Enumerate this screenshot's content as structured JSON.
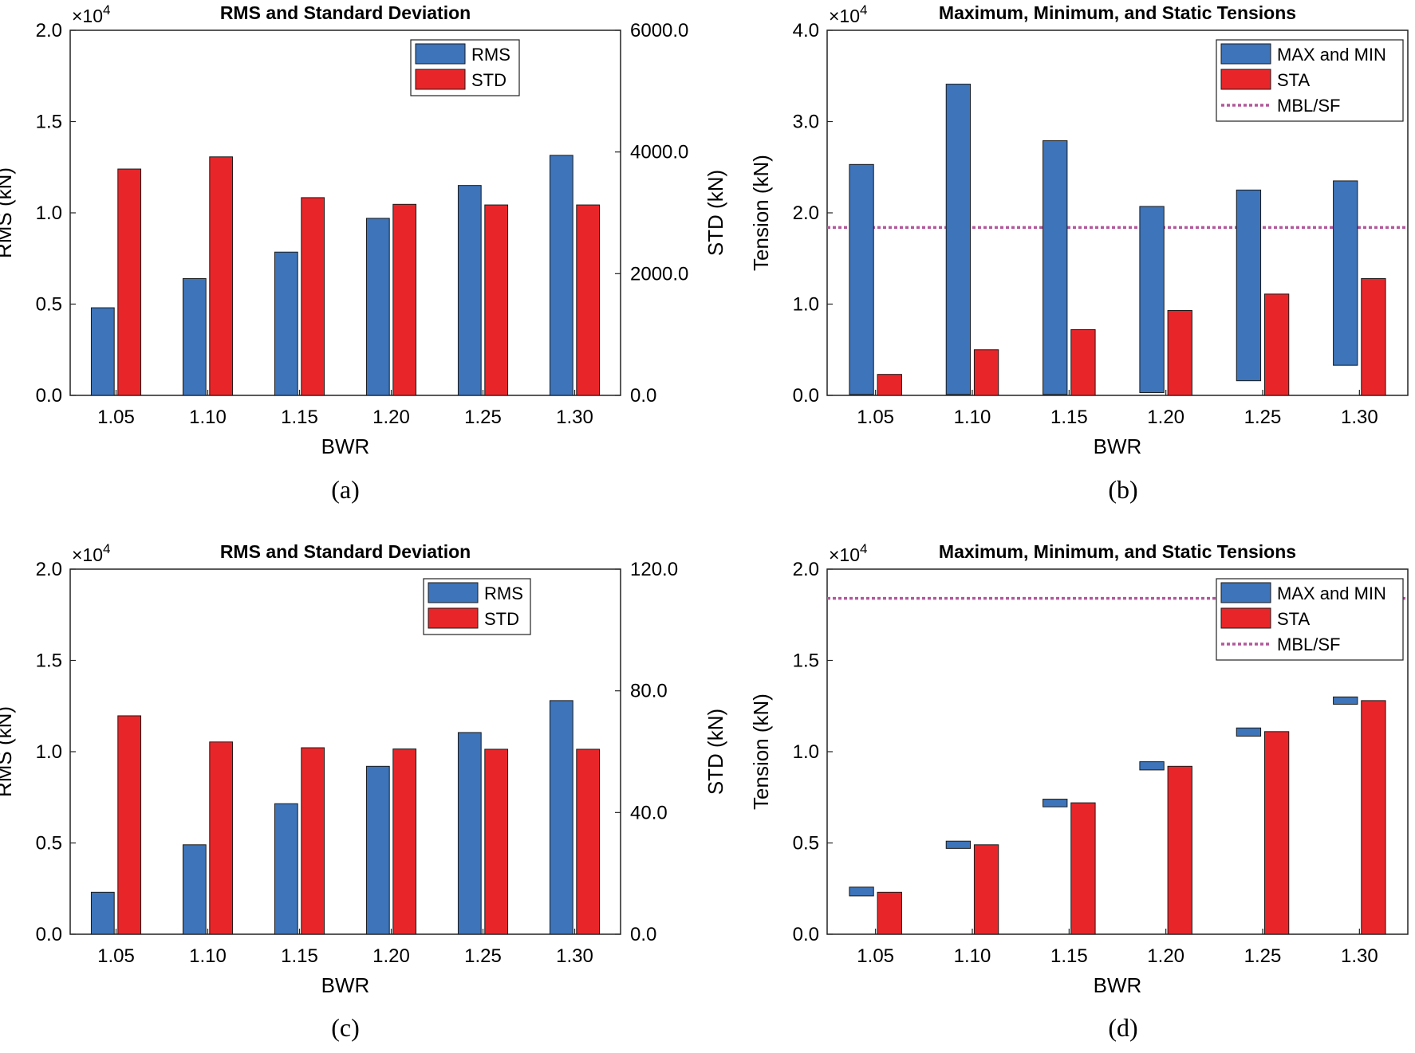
{
  "colors": {
    "rms": "#3d74ba",
    "std": "#e8262a",
    "mbl": "#b2589c"
  },
  "chart_data": [
    {
      "type": "bar",
      "panel": "(a)",
      "title": "RMS and Standard Deviation",
      "xlabel": "BWR",
      "ylabel": "RMS (kN)",
      "y2label": "STD (kN)",
      "exponent_base": "×10",
      "exponent_power": "4",
      "categories": [
        "1.05",
        "1.10",
        "1.15",
        "1.20",
        "1.25",
        "1.30"
      ],
      "ylim": [
        0,
        20000
      ],
      "y2lim": [
        0,
        6000
      ],
      "yticks": [
        "0.0",
        "0.5",
        "1.0",
        "1.5",
        "2.0"
      ],
      "y2ticks": [
        "0.0",
        "2000.0",
        "4000.0",
        "6000.0"
      ],
      "series": [
        {
          "name": "RMS",
          "axis": "left",
          "values": [
            4800,
            6400,
            7850,
            9700,
            11500,
            13150
          ]
        },
        {
          "name": "STD",
          "axis": "right",
          "values": [
            3720,
            3920,
            3250,
            3140,
            3130,
            3130
          ]
        }
      ],
      "legend": [
        "RMS",
        "STD"
      ],
      "legend_position": "top-right"
    },
    {
      "type": "bar",
      "panel": "(b)",
      "title": "Maximum, Minimum, and Static Tensions",
      "xlabel": "BWR",
      "ylabel": "Tension (kN)",
      "exponent_base": "×10",
      "exponent_power": "4",
      "categories": [
        "1.05",
        "1.10",
        "1.15",
        "1.20",
        "1.25",
        "1.30"
      ],
      "ylim": [
        0,
        40000
      ],
      "yticks": [
        "0.0",
        "1.0",
        "2.0",
        "3.0",
        "4.0"
      ],
      "series": [
        {
          "name": "MAX and MIN",
          "kind": "floating",
          "max": [
            25300,
            34100,
            27900,
            20700,
            22500,
            23500
          ],
          "min": [
            100,
            100,
            100,
            300,
            1600,
            3300
          ]
        },
        {
          "name": "STA",
          "values": [
            2300,
            5000,
            7200,
            9300,
            11100,
            12800
          ]
        }
      ],
      "reference_line": {
        "name": "MBL/SF",
        "value": 18400
      },
      "legend": [
        "MAX and MIN",
        "STA",
        "MBL/SF"
      ],
      "legend_position": "top-right"
    },
    {
      "type": "bar",
      "panel": "(c)",
      "title": "RMS and Standard Deviation",
      "xlabel": "BWR",
      "ylabel": "RMS (kN)",
      "y2label": "STD (kN)",
      "exponent_base": "×10",
      "exponent_power": "4",
      "categories": [
        "1.05",
        "1.10",
        "1.15",
        "1.20",
        "1.25",
        "1.30"
      ],
      "ylim": [
        0,
        20000
      ],
      "y2lim": [
        0,
        120
      ],
      "yticks": [
        "0.0",
        "0.5",
        "1.0",
        "1.5",
        "2.0"
      ],
      "y2ticks": [
        "0.0",
        "40.0",
        "80.0",
        "120.0"
      ],
      "series": [
        {
          "name": "RMS",
          "axis": "left",
          "values": [
            2300,
            4900,
            7150,
            9200,
            11050,
            12800
          ]
        },
        {
          "name": "STD",
          "axis": "right",
          "values": [
            71.8,
            63.2,
            61.3,
            60.9,
            60.8,
            60.8
          ]
        }
      ],
      "legend": [
        "RMS",
        "STD"
      ],
      "legend_position": "top-right"
    },
    {
      "type": "bar",
      "panel": "(d)",
      "title": "Maximum, Minimum, and Static Tensions",
      "xlabel": "BWR",
      "ylabel": "Tension (kN)",
      "exponent_base": "×10",
      "exponent_power": "4",
      "categories": [
        "1.05",
        "1.10",
        "1.15",
        "1.20",
        "1.25",
        "1.30"
      ],
      "ylim": [
        0,
        20000
      ],
      "yticks": [
        "0.0",
        "0.5",
        "1.0",
        "1.5",
        "2.0"
      ],
      "series": [
        {
          "name": "MAX and MIN",
          "kind": "floating",
          "max": [
            2580,
            5100,
            7400,
            9450,
            11300,
            13000
          ],
          "min": [
            2100,
            4700,
            6980,
            9000,
            10850,
            12600
          ]
        },
        {
          "name": "STA",
          "values": [
            2300,
            4900,
            7200,
            9200,
            11100,
            12800
          ]
        }
      ],
      "reference_line": {
        "name": "MBL/SF",
        "value": 18400
      },
      "legend": [
        "MAX and MIN",
        "STA",
        "MBL/SF"
      ],
      "legend_position": "top-right"
    }
  ]
}
